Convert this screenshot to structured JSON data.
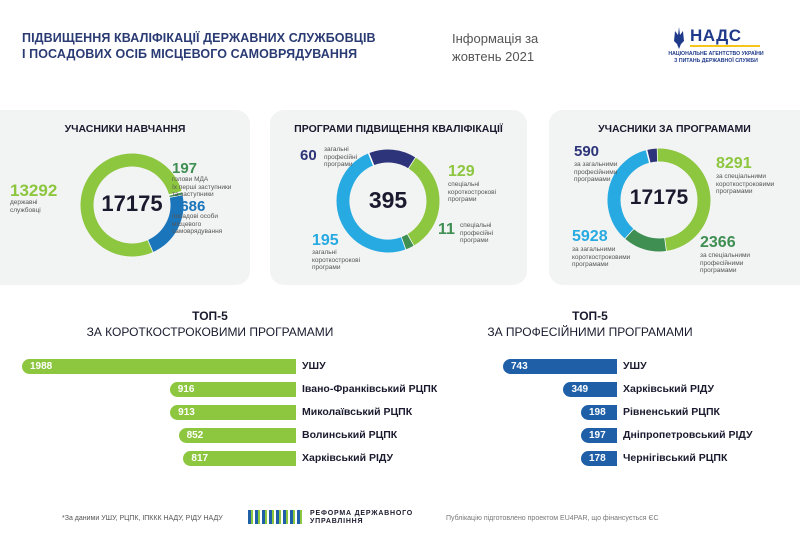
{
  "header": {
    "title_line1": "ПІДВИЩЕННЯ КВАЛІФІКАЦІЇ ДЕРЖАВНИХ СЛУЖБОВЦІВ",
    "title_line2": "І ПОСАДОВИХ ОСІБ МІСЦЕВОГО САМОВРЯДУВАННЯ",
    "info_line1": "Інформація за",
    "info_line2": "жовтень 2021",
    "logo_name": "НАДС",
    "logo_sub1": "НАЦІОНАЛЬНЕ АГЕНТСТВО УКРАЇНИ",
    "logo_sub2": "З ПИТАНЬ ДЕРЖАВНОЇ СЛУЖБИ"
  },
  "colors": {
    "green": "#8dc63f",
    "dark_green": "#3f8f53",
    "blue": "#1b75bb",
    "light_blue": "#27aae1",
    "navy": "#2d3479",
    "bar_blue": "#1f5fa8"
  },
  "panel1": {
    "title": "УЧАСНИКИ НАВЧАННЯ",
    "total": "17175",
    "left_value": "13292",
    "left_label1": "державні",
    "left_label2": "службовці",
    "r1_value": "197",
    "r1_label1": "голови МДА",
    "r1_label2": "їх перші заступники",
    "r1_label3": "та заступники",
    "r2_value": "3686",
    "r2_label1": "посадові особи",
    "r2_label2": "місцевого",
    "r2_label3": "самоврядування"
  },
  "panel2": {
    "title": "ПРОГРАМИ ПІДВИЩЕННЯ КВАЛІФІКАЦІЇ",
    "total": "395",
    "a_value": "60",
    "a_label1": "загальні",
    "a_label2": "професійні",
    "a_label3": "програми",
    "b_value": "129",
    "b_label1": "спеціальні",
    "b_label2": "короткострокові",
    "b_label3": "програми",
    "c_value": "195",
    "c_label1": "загальні",
    "c_label2": "короткострокові",
    "c_label3": "програми",
    "d_value": "11",
    "d_label1": "спеціальні",
    "d_label2": "професійні",
    "d_label3": "програми"
  },
  "panel3": {
    "title": "УЧАСНИКИ ЗА ПРОГРАМАМИ",
    "total": "17175",
    "a_value": "590",
    "a_label1": "за загальними",
    "a_label2": "професійними",
    "a_label3": "програмами",
    "b_value": "8291",
    "b_label1": "за спеціальними",
    "b_label2": "короткостроковими",
    "b_label3": "програмами",
    "c_value": "5928",
    "c_label1": "за загальними",
    "c_label2": "короткостроковими",
    "c_label3": "програмами",
    "d_value": "2366",
    "d_label1": "за спеціальними",
    "d_label2": "професійними",
    "d_label3": "програмами"
  },
  "top_left": {
    "title1": "ТОП-5",
    "title2": "ЗА КОРОТКОСТРОКОВИМИ ПРОГРАМАМИ"
  },
  "top_right": {
    "title1": "ТОП-5",
    "title2": "ЗА ПРОФЕСІЙНИМИ ПРОГРАМАМИ"
  },
  "chart_data": [
    {
      "type": "pie",
      "title": "УЧАСНИКИ НАВЧАННЯ",
      "categories": [
        "державні службовці",
        "голови МДА їх перші заступники та заступники",
        "посадові особи місцевого самоврядування"
      ],
      "values": [
        13292,
        197,
        3686
      ],
      "total": 17175
    },
    {
      "type": "pie",
      "title": "ПРОГРАМИ ПІДВИЩЕННЯ КВАЛІФІКАЦІЇ",
      "categories": [
        "загальні професійні програми",
        "спеціальні короткострокові програми",
        "спеціальні професійні програми",
        "загальні короткострокові програми"
      ],
      "values": [
        60,
        129,
        11,
        195
      ],
      "total": 395
    },
    {
      "type": "pie",
      "title": "УЧАСНИКИ ЗА ПРОГРАМАМИ",
      "categories": [
        "за загальними професійними програмами",
        "за спеціальними короткостроковими програмами",
        "за спеціальними професійними програмами",
        "за загальними короткостроковими програмами"
      ],
      "values": [
        590,
        8291,
        2366,
        5928
      ],
      "total": 17175
    },
    {
      "type": "bar",
      "title": "ТОП-5 ЗА КОРОТКОСТРОКОВИМИ ПРОГРАМАМИ",
      "categories": [
        "УШУ",
        "Івано-Франківський РЦПК",
        "Миколаївський РЦПК",
        "Волинський РЦПК",
        "Харківський РІДУ"
      ],
      "values": [
        1988,
        916,
        913,
        852,
        817
      ]
    },
    {
      "type": "bar",
      "title": "ТОП-5 ЗА ПРОФЕСІЙНИМИ ПРОГРАМАМИ",
      "categories": [
        "УШУ",
        "Харківський РІДУ",
        "Рівненський РЦПК",
        "Дніпропетровський РІДУ",
        "Чернігівський РЦПК"
      ],
      "values": [
        743,
        349,
        198,
        197,
        178
      ]
    }
  ],
  "footer": {
    "note": "*За даними УШУ, РЦПК, ІПККК НАДУ, РІДУ НАДУ",
    "reform1": "РЕФОРМА ДЕРЖАВНОГО",
    "reform2": "УПРАВЛІННЯ",
    "publication": "Публікацію підготовлено проектом EU4PAR, що фінансується ЄС"
  }
}
